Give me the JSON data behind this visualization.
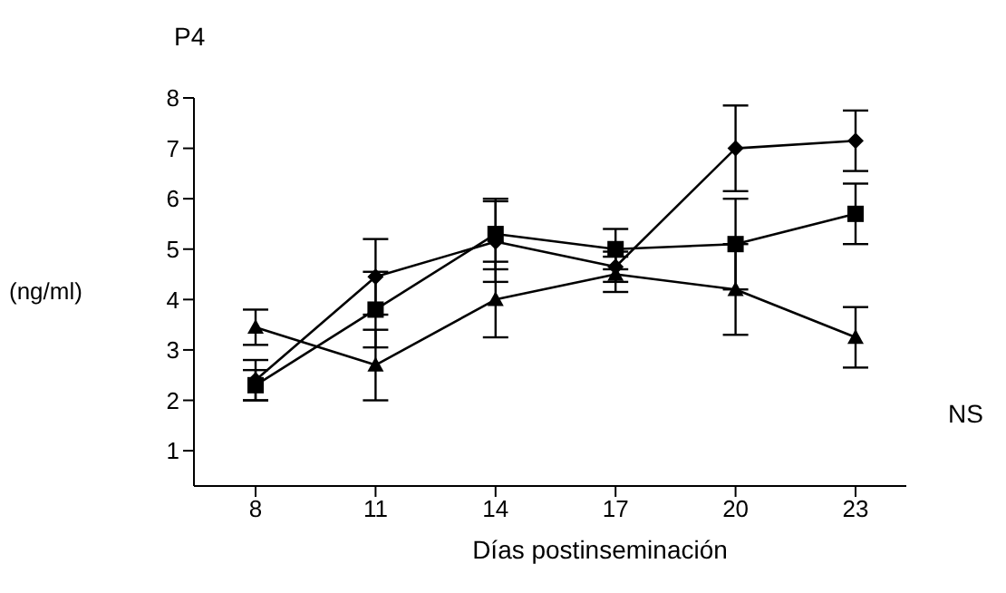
{
  "chart_data": {
    "type": "line",
    "title": "P4",
    "ylabel": "(ng/ml)",
    "xlabel": "Días postinseminación",
    "categories": [
      "8",
      "11",
      "14",
      "17",
      "20",
      "23"
    ],
    "ylim": [
      0.3,
      8
    ],
    "yticks": [
      1,
      2,
      3,
      4,
      5,
      6,
      7,
      8
    ],
    "grid": false,
    "legend": false,
    "annotations": [
      "NS"
    ],
    "series": [
      {
        "color": "#000000",
        "marker": "diamond",
        "values": [
          2.4,
          4.45,
          5.15,
          4.65,
          7.0,
          7.15
        ],
        "errors": [
          0.4,
          0.75,
          0.8,
          0.3,
          0.85,
          0.6
        ]
      },
      {
        "color": "#000000",
        "marker": "square",
        "values": [
          2.3,
          3.8,
          5.3,
          5.0,
          5.1,
          5.7
        ],
        "errors": [
          0.3,
          0.75,
          0.7,
          0.4,
          0.9,
          0.6
        ]
      },
      {
        "color": "#000000",
        "marker": "triangle",
        "values": [
          3.45,
          2.7,
          4.0,
          4.5,
          4.2,
          3.25
        ],
        "errors": [
          0.35,
          0.7,
          0.75,
          0.35,
          0.9,
          0.6
        ]
      }
    ]
  }
}
